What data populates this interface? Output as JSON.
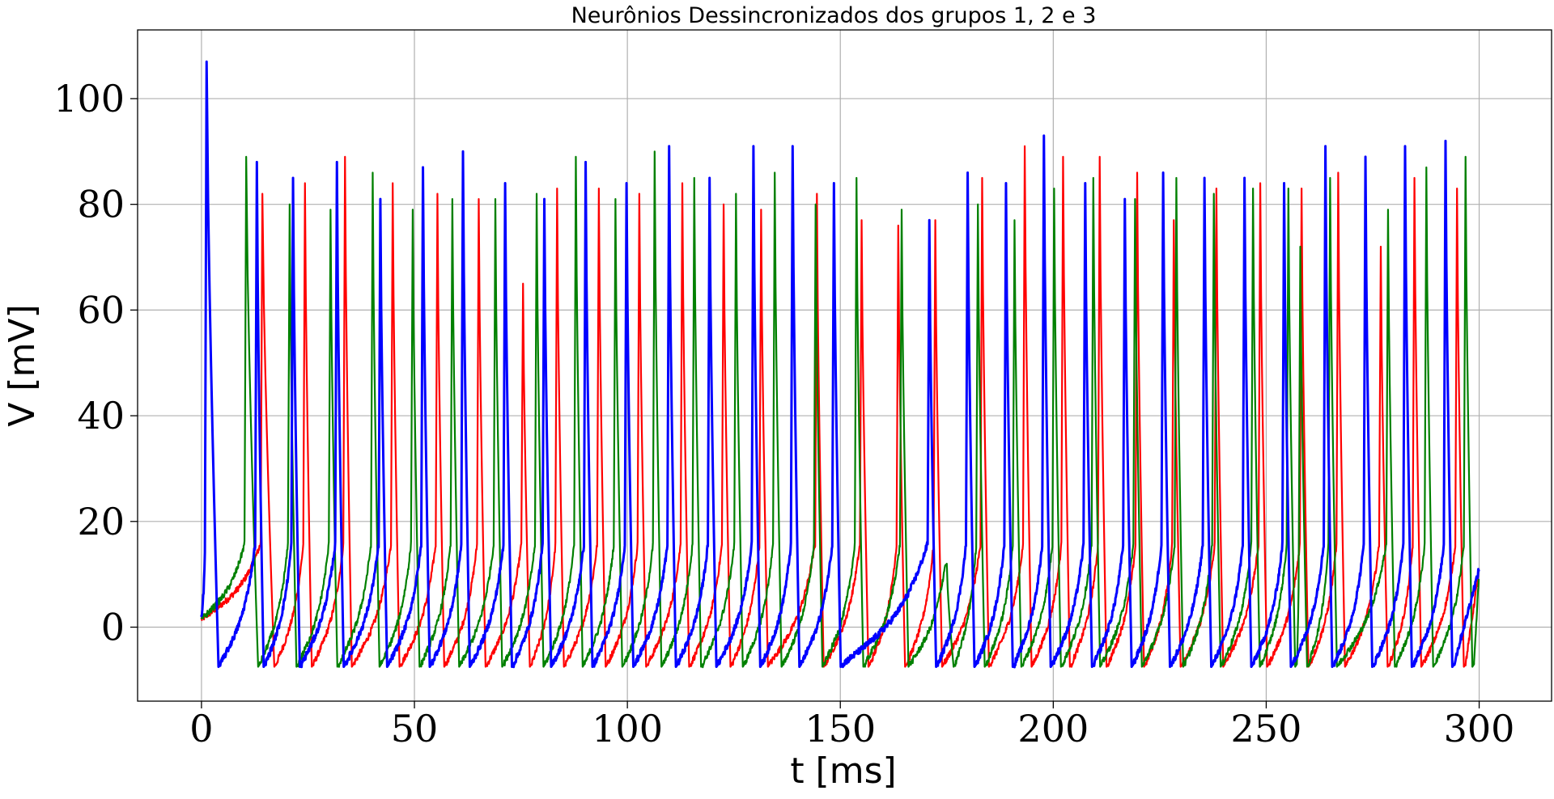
{
  "chart_data": {
    "type": "line",
    "title": "Neurônios Dessincronizados dos grupos 1, 2 e 3",
    "xlabel": "t [ms]",
    "ylabel": "V [mV]",
    "xlim": [
      -15,
      317
    ],
    "ylim": [
      -14,
      113
    ],
    "xticks": [
      0,
      50,
      100,
      150,
      200,
      250,
      300
    ],
    "yticks": [
      0,
      20,
      40,
      60,
      80,
      100
    ],
    "xtick_labels": [
      "0",
      "50",
      "100",
      "150",
      "200",
      "250",
      "300"
    ],
    "ytick_labels": [
      "0",
      "20",
      "40",
      "60",
      "80",
      "100"
    ],
    "grid": true,
    "legend": "none",
    "series": [
      {
        "color": "#ff0000",
        "spikes": [
          [
            14.3,
            82
          ],
          [
            24.3,
            84
          ],
          [
            33.7,
            89
          ],
          [
            44.9,
            84
          ],
          [
            55.4,
            82
          ],
          [
            65.1,
            81
          ],
          [
            75.5,
            65
          ],
          [
            83.5,
            83
          ],
          [
            93.3,
            83
          ],
          [
            102.8,
            82
          ],
          [
            112.9,
            84
          ],
          [
            122.6,
            80
          ],
          [
            131.4,
            79
          ],
          [
            144.5,
            82
          ],
          [
            155.0,
            77
          ],
          [
            163.6,
            76
          ],
          [
            172.3,
            77
          ],
          [
            183.3,
            85
          ],
          [
            193.3,
            91
          ],
          [
            202.3,
            89
          ],
          [
            210.9,
            89
          ],
          [
            219.7,
            86
          ],
          [
            228.3,
            77
          ],
          [
            238.3,
            83
          ],
          [
            248.6,
            84
          ],
          [
            258.3,
            83
          ],
          [
            266.9,
            86
          ],
          [
            276.9,
            72
          ],
          [
            284.8,
            85
          ],
          [
            294.8,
            83
          ]
        ]
      },
      {
        "color": "#008000",
        "spikes": [
          [
            10.5,
            89
          ],
          [
            20.7,
            80
          ],
          [
            30.3,
            79
          ],
          [
            40.2,
            86
          ],
          [
            49.6,
            79
          ],
          [
            58.9,
            81
          ],
          [
            69.0,
            81
          ],
          [
            78.7,
            82
          ],
          [
            87.9,
            89
          ],
          [
            97.2,
            81
          ],
          [
            106.4,
            90
          ],
          [
            115.7,
            85
          ],
          [
            125.5,
            82
          ],
          [
            134.6,
            86
          ],
          [
            144.2,
            80
          ],
          [
            153.8,
            85
          ],
          [
            164.4,
            79
          ],
          [
            175.0,
            12
          ],
          [
            182.3,
            80
          ],
          [
            190.9,
            77
          ],
          [
            200.2,
            83
          ],
          [
            209.4,
            85
          ],
          [
            219.2,
            81
          ],
          [
            228.9,
            85
          ],
          [
            237.7,
            82
          ],
          [
            246.9,
            83
          ],
          [
            255.2,
            83
          ],
          [
            258.0,
            72
          ],
          [
            265.0,
            85
          ],
          [
            278.6,
            79
          ],
          [
            287.6,
            87
          ],
          [
            296.8,
            89
          ]
        ]
      },
      {
        "color": "#0000ff",
        "spikes": [
          [
            1.2,
            107
          ],
          [
            13.0,
            88
          ],
          [
            21.5,
            85
          ],
          [
            31.8,
            88
          ],
          [
            42.0,
            81
          ],
          [
            52.0,
            87
          ],
          [
            61.4,
            90
          ],
          [
            71.3,
            84
          ],
          [
            80.5,
            81
          ],
          [
            90.2,
            88
          ],
          [
            99.8,
            84
          ],
          [
            109.8,
            91
          ],
          [
            119.3,
            85
          ],
          [
            129.6,
            91
          ],
          [
            138.8,
            91
          ],
          [
            148.5,
            84
          ],
          [
            170.9,
            77
          ],
          [
            179.9,
            86
          ],
          [
            188.9,
            84
          ],
          [
            197.8,
            93
          ],
          [
            207.5,
            84
          ],
          [
            216.8,
            81
          ],
          [
            225.8,
            86
          ],
          [
            235.5,
            85
          ],
          [
            244.9,
            85
          ],
          [
            254.2,
            84
          ],
          [
            263.9,
            91
          ],
          [
            273.3,
            89
          ],
          [
            282.6,
            91
          ],
          [
            292.1,
            92
          ]
        ]
      }
    ]
  }
}
